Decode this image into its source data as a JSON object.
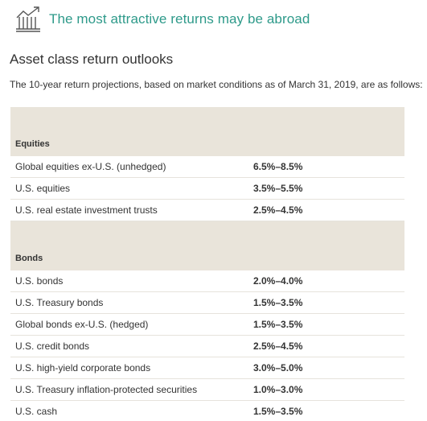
{
  "banner": {
    "title": "The most attractive returns may be abroad",
    "icon": "building-chart-icon",
    "accent_color": "#2e9a8a"
  },
  "heading": "Asset class return outlooks",
  "intro": "The 10-year return projections, based on market conditions as of March 31, 2019, are as follows:",
  "sections": [
    {
      "label": "Equities",
      "rows": [
        {
          "name": "Global equities ex-U.S. (unhedged)",
          "value": "6.5%–8.5%"
        },
        {
          "name": "U.S. equities",
          "value": "3.5%–5.5%"
        },
        {
          "name": "U.S. real estate investment trusts",
          "value": "2.5%–4.5%"
        }
      ]
    },
    {
      "label": "Bonds",
      "rows": [
        {
          "name": "U.S. bonds",
          "value": "2.0%–4.0%"
        },
        {
          "name": "U.S. Treasury bonds",
          "value": "1.5%–3.5%"
        },
        {
          "name": "Global bonds ex-U.S. (hedged)",
          "value": "1.5%–3.5%"
        },
        {
          "name": "U.S. credit bonds",
          "value": "2.5%–4.5%"
        },
        {
          "name": "U.S. high-yield corporate bonds",
          "value": "3.0%–5.0%"
        },
        {
          "name": "U.S. Treasury inflation-protected securities",
          "value": "1.0%–3.0%"
        },
        {
          "name": "U.S. cash",
          "value": "1.5%–3.5%"
        }
      ]
    }
  ]
}
